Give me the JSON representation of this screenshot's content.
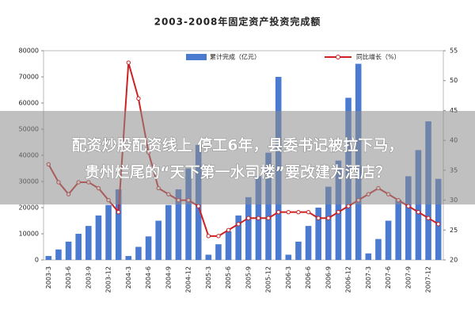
{
  "chart_data": {
    "type": "bar-line",
    "title": "2003-2008年固定资产投资完成额",
    "categories": [
      "2003-3",
      null,
      "2003-6",
      null,
      "2003-9",
      null,
      "2003-12",
      null,
      "2004-3",
      null,
      "2004-6",
      null,
      "2004-9",
      null,
      "2004-12",
      null,
      "2005-3",
      null,
      "2005-6",
      null,
      "2005-9",
      null,
      "2005-12",
      null,
      "2006-3",
      null,
      "2006-6",
      null,
      "2006-9",
      null,
      "2006-12",
      null,
      "2007-3",
      null,
      "2007-6",
      null,
      "2007-9",
      null,
      "2007-12",
      null
    ],
    "series": [
      {
        "name": "累计完成（亿元）",
        "color": "#4a7bd0",
        "kind": "bar",
        "values": [
          1500,
          4000,
          7000,
          10000,
          13000,
          17000,
          21000,
          27000,
          1500,
          5000,
          9000,
          15000,
          21000,
          27000,
          35000,
          44000,
          2000,
          6000,
          11000,
          17000,
          24000,
          32000,
          41000,
          70000,
          2000,
          7000,
          13000,
          20000,
          28000,
          38000,
          62000,
          75000,
          2500,
          8000,
          15000,
          23000,
          32000,
          42000,
          53000,
          31000
        ]
      },
      {
        "name": "同比增长（%）",
        "color": "#cc2222",
        "kind": "line",
        "axis": "y2",
        "values": [
          36,
          33,
          31,
          33,
          33,
          32,
          30,
          28,
          53,
          47,
          38,
          32,
          31,
          30,
          30,
          29,
          24,
          24,
          25,
          26,
          27,
          27,
          27,
          28,
          28,
          28,
          28,
          27,
          27,
          28,
          29,
          30,
          31,
          32,
          31,
          30,
          29,
          28,
          27,
          26
        ]
      }
    ],
    "ylim": [
      0,
      80000
    ],
    "yticks": [
      0,
      10000,
      20000,
      30000,
      40000,
      50000,
      60000,
      70000,
      80000
    ],
    "y2lim": [
      20,
      55
    ],
    "y2ticks": [
      20,
      25,
      30,
      35,
      40,
      45,
      50,
      55
    ],
    "grid": false
  },
  "overlay": {
    "lines": [
      "配资炒股配资线上 停工6年，县委书记被拉下马，",
      "贵州烂尾的“天下第一水司楼”要改建为酒店？"
    ]
  }
}
